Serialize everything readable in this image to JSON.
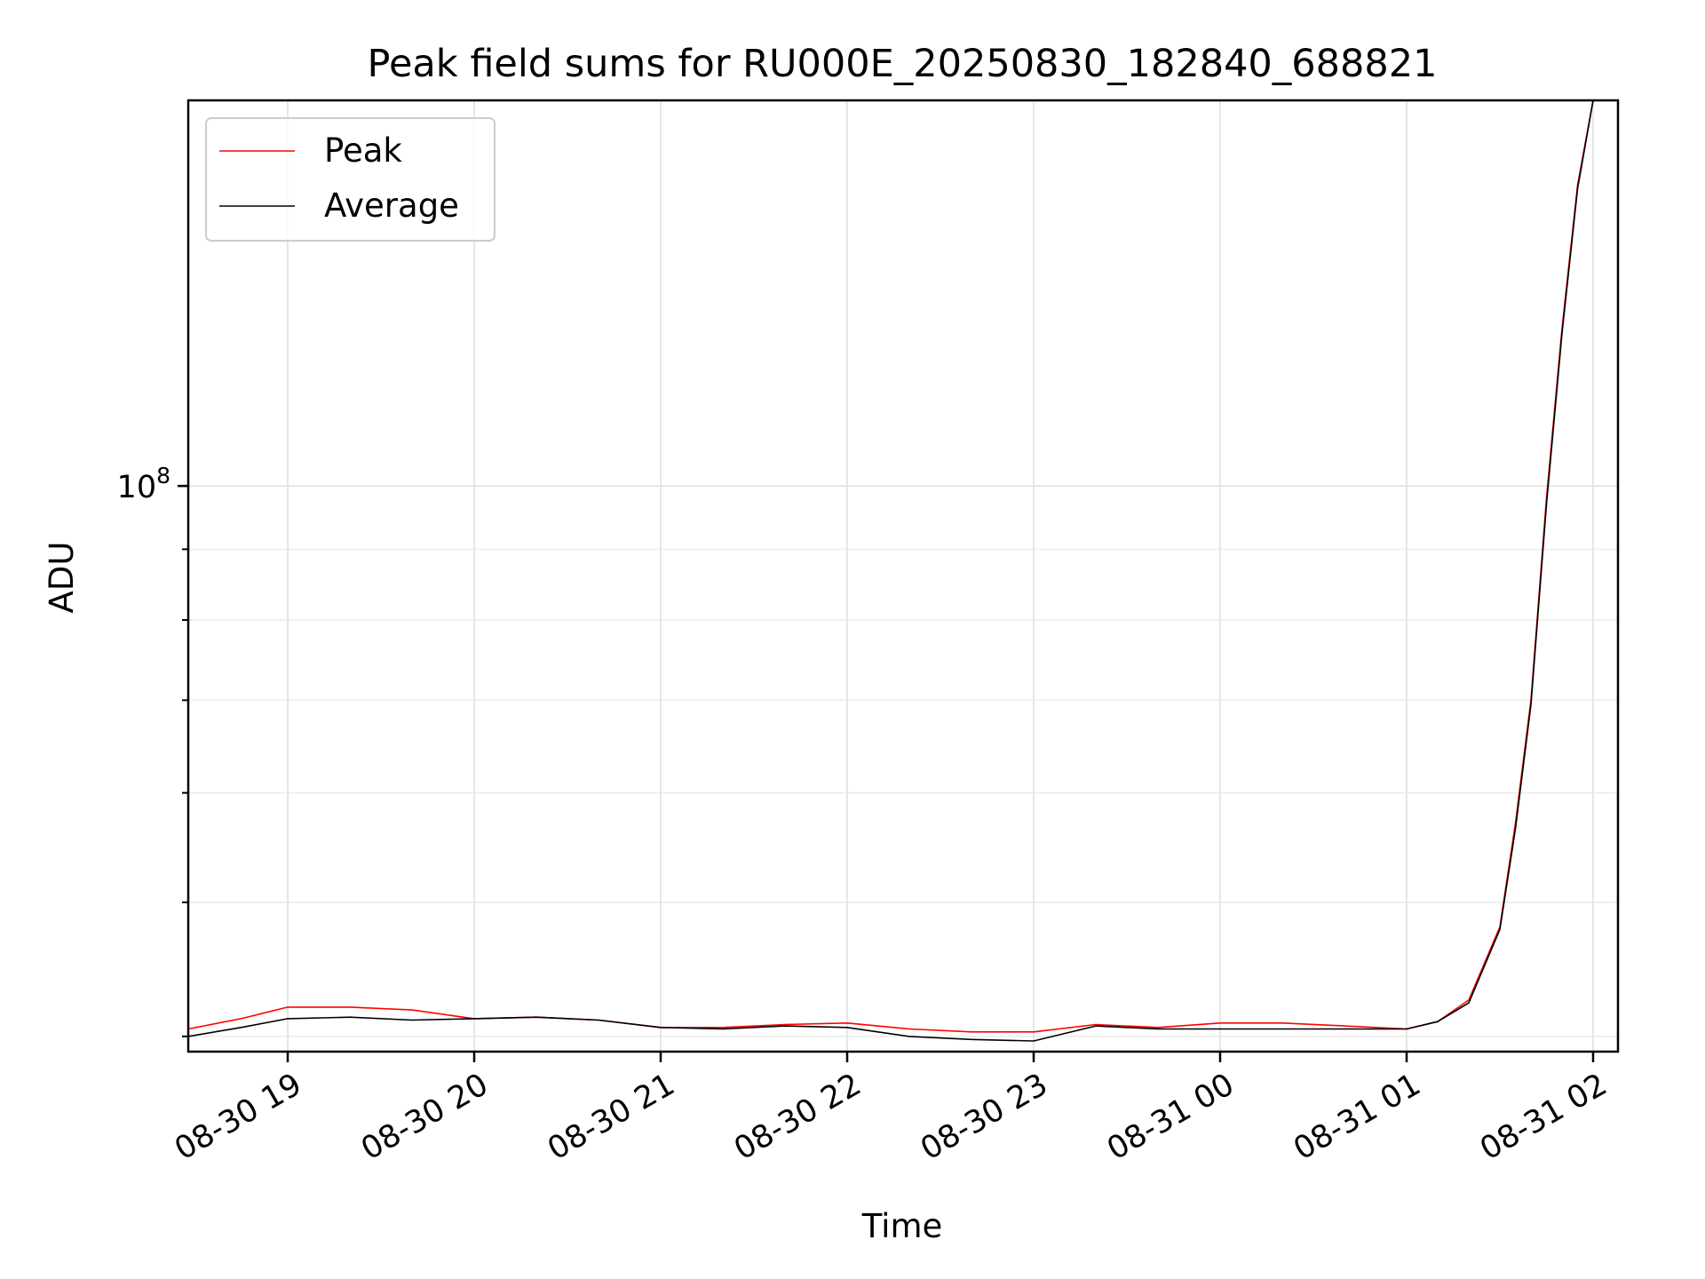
{
  "chart_data": {
    "type": "line",
    "title": "Peak field sums for RU000E_20250830_182840_688821",
    "xlabel": "Time",
    "ylabel": "ADU",
    "y_scale": "log",
    "x_tick_labels": [
      "08-30 19",
      "08-30 20",
      "08-30 21",
      "08-30 22",
      "08-30 23",
      "08-31 00",
      "08-31 01",
      "08-31 02"
    ],
    "x_ticks": [
      "2025-08-30T19:00",
      "2025-08-30T20:00",
      "2025-08-30T21:00",
      "2025-08-30T22:00",
      "2025-08-30T23:00",
      "2025-08-31T00:00",
      "2025-08-31T01:00",
      "2025-08-31T02:00"
    ],
    "xlim": [
      "2025-08-30T18:28",
      "2025-08-31T02:08"
    ],
    "ylim": [
      39000000,
      190000000
    ],
    "y_major_tick_label": "10^8",
    "y_major_tick_value": 100000000,
    "grid": true,
    "legend_position": "top-left",
    "series": [
      {
        "name": "Peak",
        "color": "#ff0000",
        "x": [
          "2025-08-30T18:28",
          "2025-08-30T18:45",
          "2025-08-30T19:00",
          "2025-08-30T19:20",
          "2025-08-30T19:40",
          "2025-08-30T20:00",
          "2025-08-30T20:20",
          "2025-08-30T20:40",
          "2025-08-30T21:00",
          "2025-08-30T21:20",
          "2025-08-30T21:40",
          "2025-08-30T22:00",
          "2025-08-30T22:20",
          "2025-08-30T22:40",
          "2025-08-30T23:00",
          "2025-08-30T23:20",
          "2025-08-30T23:40",
          "2025-08-31T00:00",
          "2025-08-31T00:20",
          "2025-08-31T00:40",
          "2025-08-31T01:00",
          "2025-08-31T01:10",
          "2025-08-31T01:20",
          "2025-08-31T01:30",
          "2025-08-31T01:35",
          "2025-08-31T01:40",
          "2025-08-31T01:45",
          "2025-08-31T01:50",
          "2025-08-31T01:55",
          "2025-08-31T02:00"
        ],
        "y": [
          40500000,
          41200000,
          42000000,
          42000000,
          41800000,
          41200000,
          41300000,
          41100000,
          40600000,
          40600000,
          40800000,
          40900000,
          40500000,
          40300000,
          40300000,
          40800000,
          40600000,
          40900000,
          40900000,
          40700000,
          40500000,
          41000000,
          42500000,
          48000000,
          57000000,
          70000000,
          98000000,
          130000000,
          165000000,
          190000000
        ]
      },
      {
        "name": "Average",
        "color": "#000000",
        "x": [
          "2025-08-30T18:28",
          "2025-08-30T18:45",
          "2025-08-30T19:00",
          "2025-08-30T19:20",
          "2025-08-30T19:40",
          "2025-08-30T20:00",
          "2025-08-30T20:20",
          "2025-08-30T20:40",
          "2025-08-30T21:00",
          "2025-08-30T21:20",
          "2025-08-30T21:40",
          "2025-08-30T22:00",
          "2025-08-30T22:20",
          "2025-08-30T22:40",
          "2025-08-30T23:00",
          "2025-08-30T23:20",
          "2025-08-30T23:40",
          "2025-08-31T00:00",
          "2025-08-31T00:20",
          "2025-08-31T00:40",
          "2025-08-31T01:00",
          "2025-08-31T01:10",
          "2025-08-31T01:20",
          "2025-08-31T01:30",
          "2025-08-31T01:35",
          "2025-08-31T01:40",
          "2025-08-31T01:45",
          "2025-08-31T01:50",
          "2025-08-31T01:55",
          "2025-08-31T02:00"
        ],
        "y": [
          40000000,
          40600000,
          41200000,
          41300000,
          41100000,
          41200000,
          41300000,
          41100000,
          40600000,
          40500000,
          40700000,
          40600000,
          40000000,
          39800000,
          39700000,
          40700000,
          40500000,
          40500000,
          40500000,
          40500000,
          40500000,
          41000000,
          42300000,
          47800000,
          56500000,
          69500000,
          97000000,
          129000000,
          164000000,
          190000000
        ]
      }
    ]
  }
}
